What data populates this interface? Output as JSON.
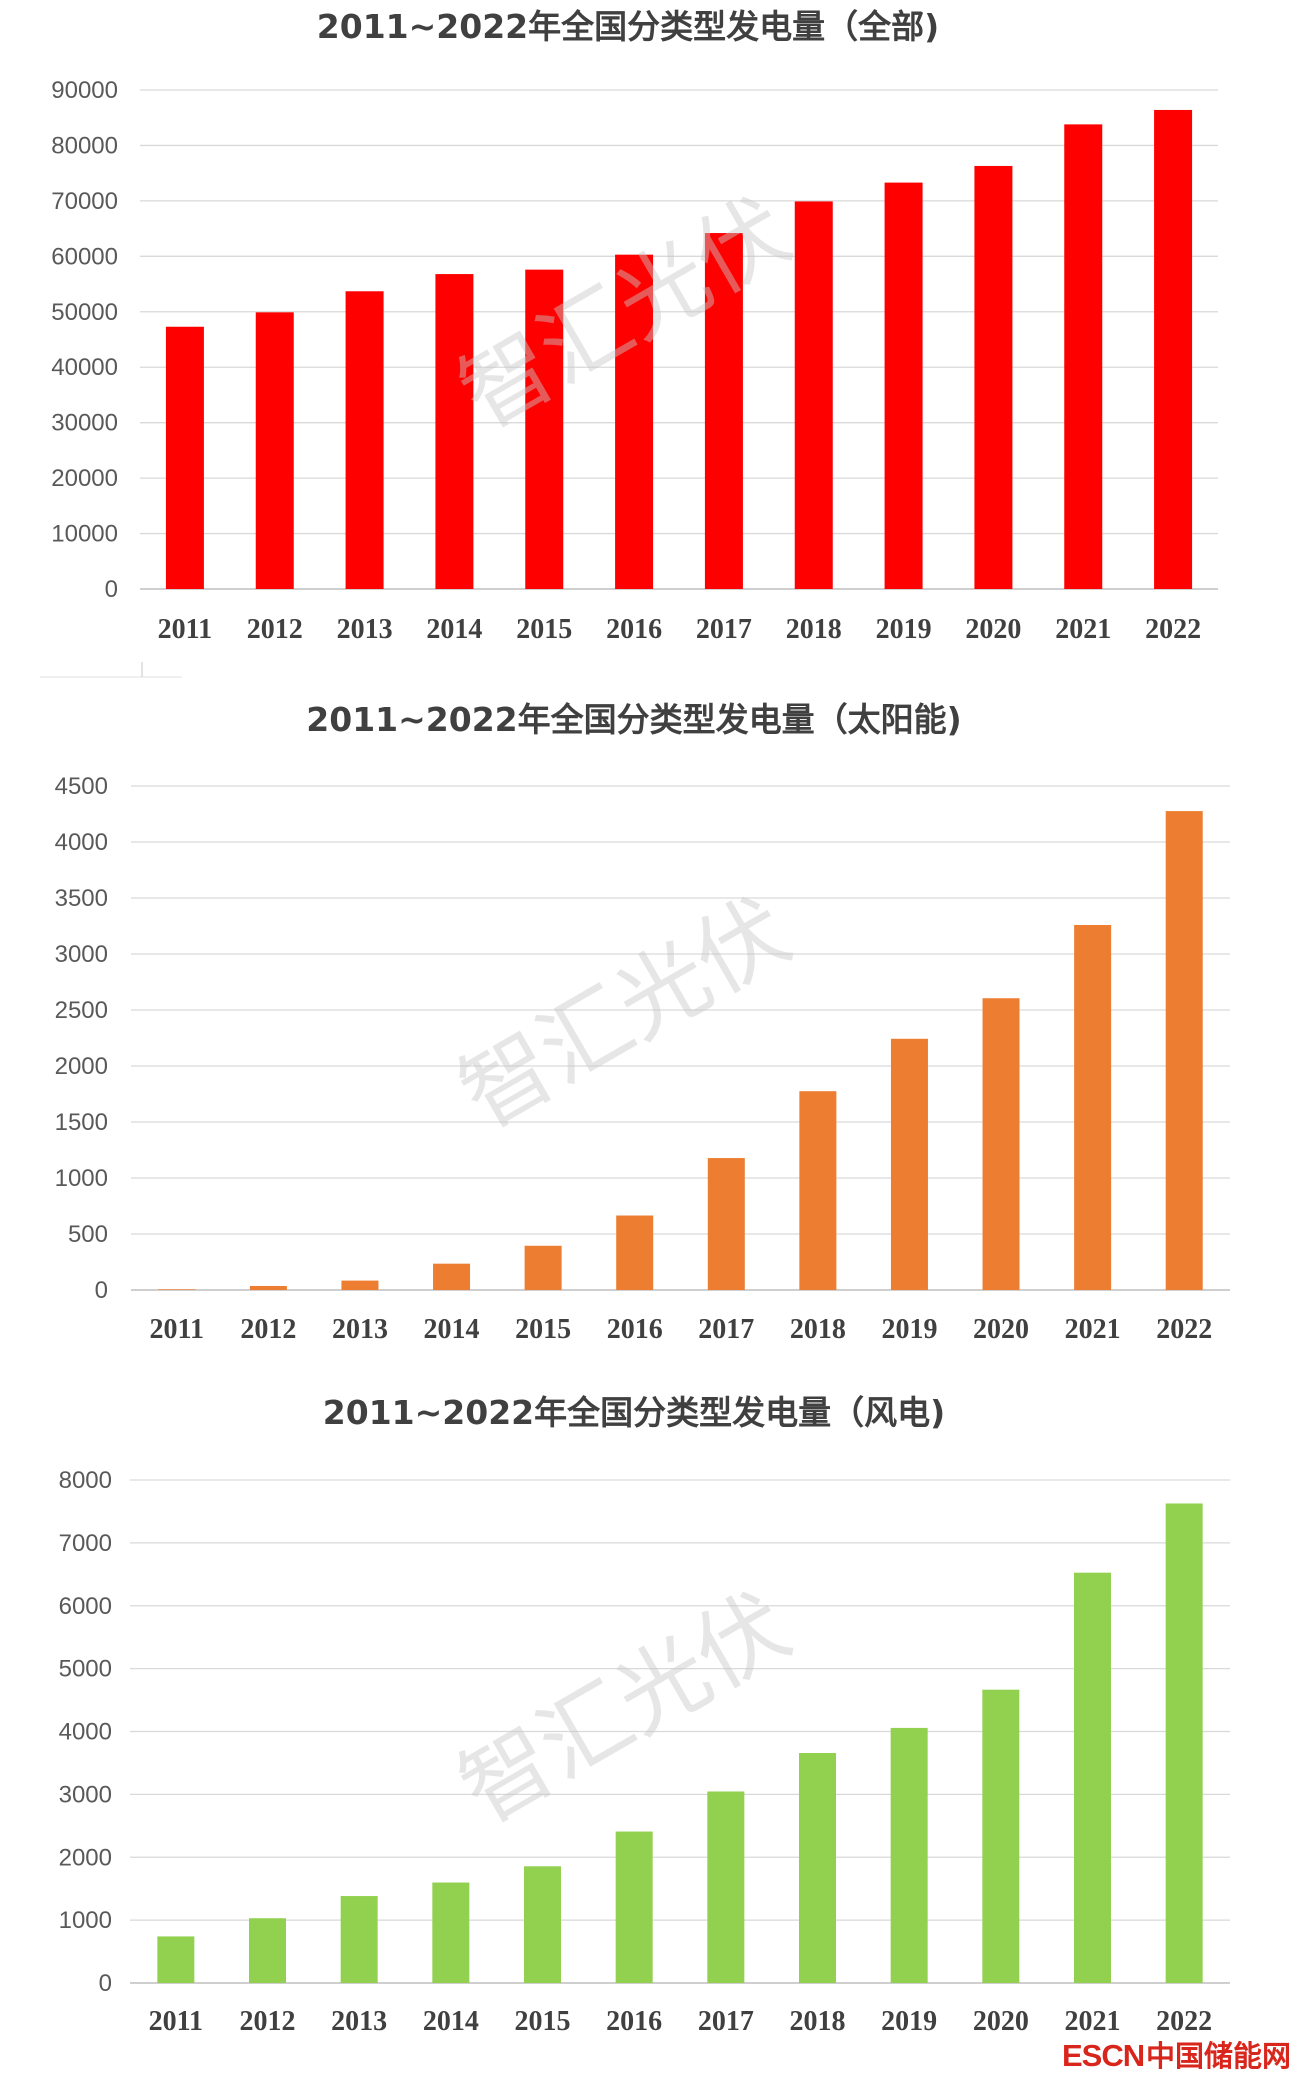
{
  "chart_data": [
    {
      "type": "bar",
      "title": "2011~2022年全国分类型发电量（全部)",
      "categories": [
        "2011",
        "2012",
        "2013",
        "2014",
        "2015",
        "2016",
        "2017",
        "2018",
        "2019",
        "2020",
        "2021",
        "2022"
      ],
      "values": [
        47300,
        49900,
        53700,
        56800,
        57600,
        60300,
        64200,
        69900,
        73300,
        76300,
        83800,
        86400
      ],
      "ylim": [
        0,
        90000
      ],
      "yticks": [
        "0",
        "10000",
        "20000",
        "30000",
        "40000",
        "50000",
        "60000",
        "70000",
        "80000",
        "90000"
      ],
      "color": "#ff0000",
      "grid": true,
      "legend": "none"
    },
    {
      "type": "bar",
      "title": "2011~2022年全国分类型发电量（太阳能)",
      "categories": [
        "2011",
        "2012",
        "2013",
        "2014",
        "2015",
        "2016",
        "2017",
        "2018",
        "2019",
        "2020",
        "2021",
        "2022"
      ],
      "values": [
        6,
        36,
        84,
        235,
        395,
        665,
        1178,
        1775,
        2243,
        2605,
        3259,
        4276
      ],
      "ylim": [
        0,
        4500
      ],
      "yticks": [
        "0",
        "500",
        "1000",
        "1500",
        "2000",
        "2500",
        "3000",
        "3500",
        "4000",
        "4500"
      ],
      "color": "#ed7d31",
      "grid": true,
      "legend": "none"
    },
    {
      "type": "bar",
      "title": "2011~2022年全国分类型发电量（风电)",
      "categories": [
        "2011",
        "2012",
        "2013",
        "2014",
        "2015",
        "2016",
        "2017",
        "2018",
        "2019",
        "2020",
        "2021",
        "2022"
      ],
      "values": [
        741,
        1030,
        1383,
        1598,
        1856,
        2409,
        3046,
        3658,
        4057,
        4665,
        6526,
        7627
      ],
      "ylim": [
        0,
        8000
      ],
      "yticks": [
        "0",
        "1000",
        "2000",
        "3000",
        "4000",
        "5000",
        "6000",
        "7000",
        "8000"
      ],
      "color": "#92d050",
      "grid": true,
      "legend": "none"
    }
  ],
  "watermark": "智汇光伏",
  "brand": {
    "latin": "ESCN",
    "chinese": "中国储能网",
    "color": "#d9261c"
  }
}
